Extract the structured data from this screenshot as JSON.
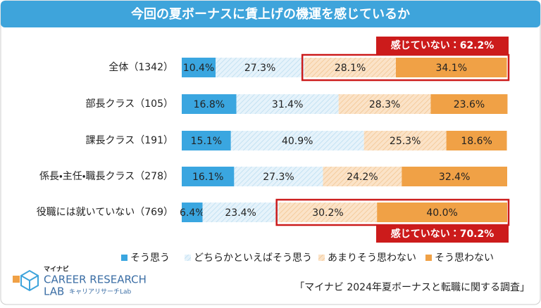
{
  "chart_data": {
    "type": "stacked-bar-horizontal",
    "title": "今回の夏ボーナスに賃上げの機運を感じているか",
    "categories": [
      "全体（1342）",
      "部長クラス（105）",
      "課長クラス（191）",
      "係長・主任・職長クラス（278）",
      "役職には就いていない（769）"
    ],
    "xlim": [
      0,
      100
    ],
    "series": [
      {
        "name": "そう思う",
        "color": "#3aa6e0",
        "hatched": false,
        "values": [
          10.4,
          16.8,
          15.1,
          16.1,
          6.4
        ],
        "value_labels": [
          "10.4%",
          "16.8%",
          "15.1%",
          "16.1%",
          "6.4%"
        ]
      },
      {
        "name": "どちらかといえばそう思う",
        "color": "#e6f3fb",
        "hatched": true,
        "values": [
          27.3,
          31.4,
          40.9,
          27.3,
          23.4
        ],
        "value_labels": [
          "27.3%",
          "31.4%",
          "40.9%",
          "27.3%",
          "23.4%"
        ]
      },
      {
        "name": "あまりそう思わない",
        "color": "#fbe3c8",
        "hatched": true,
        "values": [
          28.1,
          28.3,
          25.3,
          24.2,
          30.2
        ],
        "value_labels": [
          "28.1%",
          "28.3%",
          "25.3%",
          "24.2%",
          "30.2%"
        ]
      },
      {
        "name": "そう思わない",
        "color": "#f0a146",
        "hatched": false,
        "values": [
          34.1,
          23.6,
          18.6,
          32.4,
          40.0
        ],
        "value_labels": [
          "34.1%",
          "23.6%",
          "18.6%",
          "32.4%",
          "40.0%"
        ]
      }
    ],
    "annotations": [
      "感じていない：62.2%",
      "感じていない：70.2%"
    ],
    "source": "「マイナビ 2024年夏ボーナスと転職に関する調査」"
  },
  "logo": {
    "brand": "マイナビ",
    "line1": "CAREER RESEARCH",
    "line2": "LAB",
    "tagline": "キャリアリサーチLab"
  }
}
